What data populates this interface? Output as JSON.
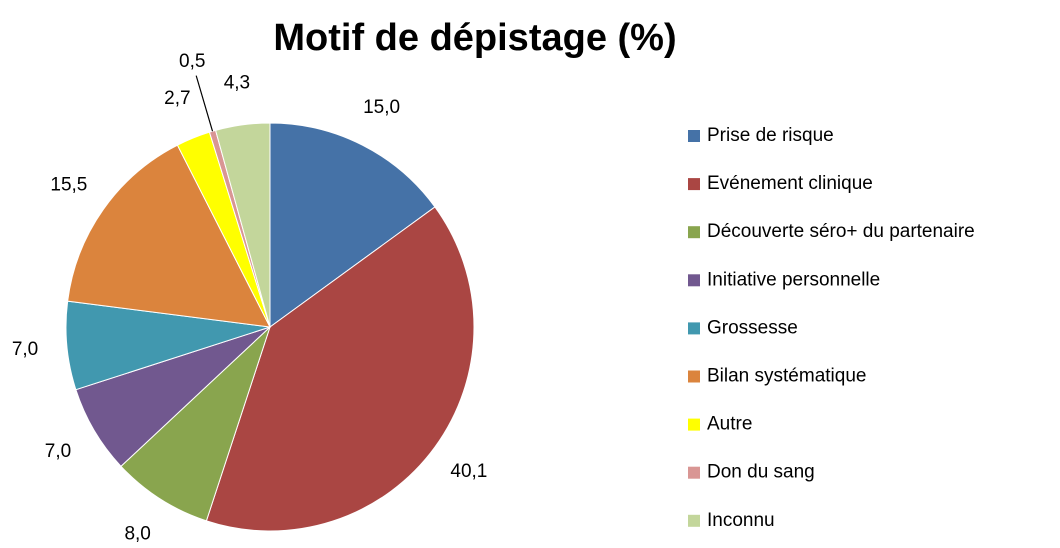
{
  "chart_data": {
    "type": "pie",
    "title": "Motif de dépistage (%)",
    "categories": [
      "Prise de risque",
      "Evénement clinique",
      "Découverte séro+ du partenaire",
      "Initiative personnelle",
      "Grossesse",
      "Bilan systématique",
      "Autre",
      "Don du sang",
      "Inconnu"
    ],
    "values": [
      15.0,
      40.1,
      8.0,
      7.0,
      7.0,
      15.5,
      2.7,
      0.5,
      4.3
    ],
    "value_labels": [
      "15,0",
      "40,1",
      "8,0",
      "7,0",
      "7,0",
      "15,5",
      "2,7",
      "0,5",
      "4,3"
    ],
    "colors": [
      "#4572a7",
      "#aa4643",
      "#89a54e",
      "#71588f",
      "#4198af",
      "#db843d",
      "#ffff00",
      "#d99694",
      "#c3d69b"
    ],
    "legend": "right"
  }
}
